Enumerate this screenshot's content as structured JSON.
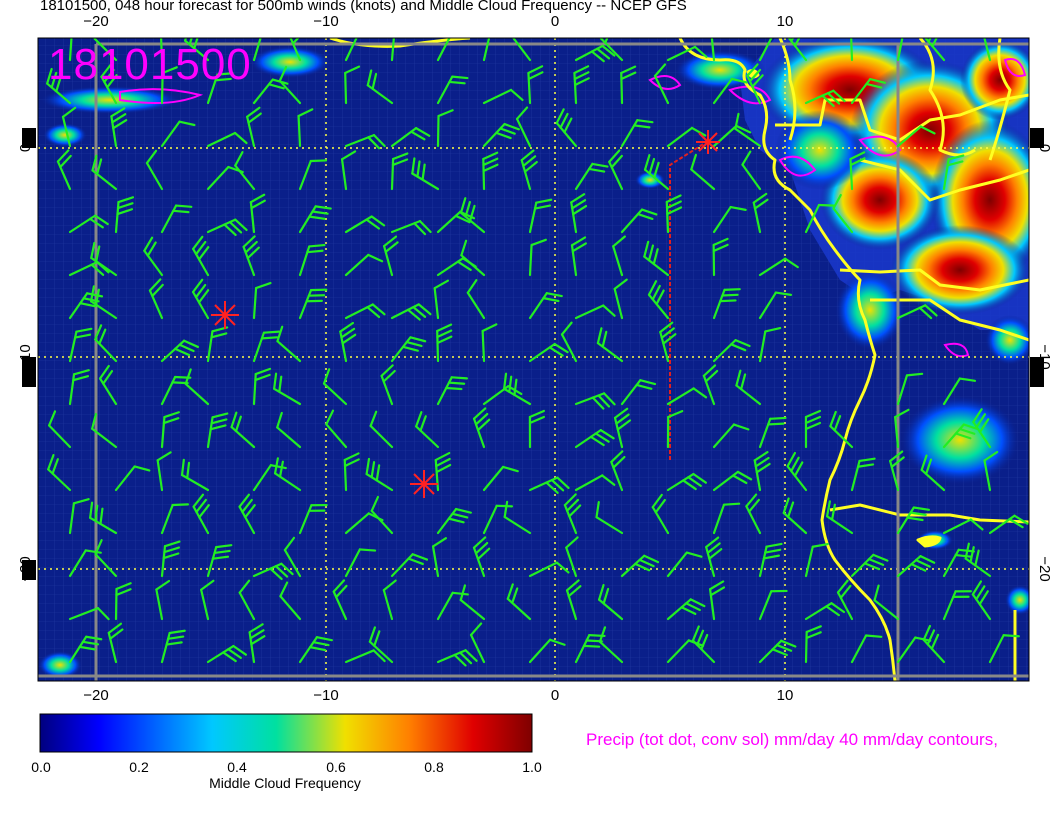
{
  "title": "18101500, 048 hour forecast for 500mb winds (knots) and Middle Cloud Frequency -- NCEP GFS",
  "date_stamp": "18101500",
  "precip_note": "Precip (tot dot, conv sol) mm/day 40 mm/day contours,",
  "colorbar": {
    "title": "Middle Cloud Frequency",
    "ticks": [
      "0.0",
      "0.2",
      "0.4",
      "0.6",
      "0.8",
      "1.0"
    ],
    "colors": [
      "#00007f",
      "#0000ff",
      "#00c8ff",
      "#00e0a0",
      "#f0e000",
      "#ff8000",
      "#e00000",
      "#7f0000"
    ]
  },
  "axes": {
    "lon_ticks": [
      "−20",
      "−10",
      "0",
      "10"
    ],
    "lat_ticks": [
      "0",
      "−10",
      "−20"
    ]
  },
  "colors": {
    "ocean": "#0a1f8a",
    "barb": "#22ee22",
    "coast": "#ffff22",
    "grid": "#ffff44",
    "marker": "#ff2222",
    "precip": "#ff00ff"
  }
}
